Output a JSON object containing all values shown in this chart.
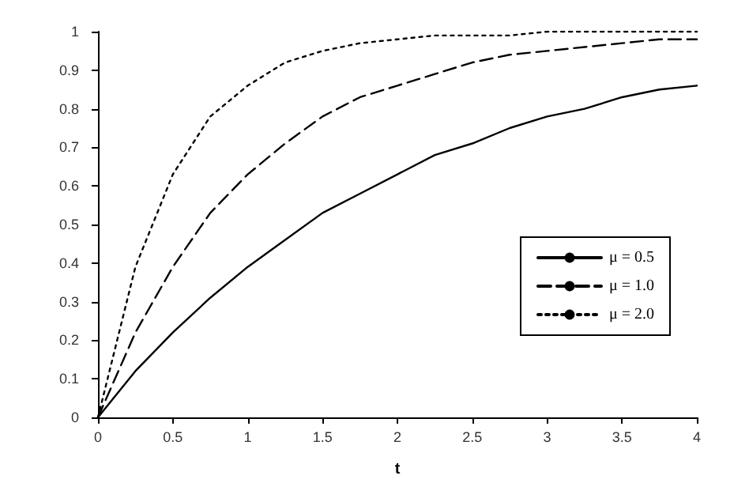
{
  "chart_data": {
    "type": "line",
    "xlabel": "t",
    "x": [
      0,
      0.25,
      0.5,
      0.75,
      1,
      1.25,
      1.5,
      1.75,
      2,
      2.25,
      2.5,
      2.75,
      3,
      3.25,
      3.5,
      3.75,
      4
    ],
    "series": [
      {
        "name": "μ = 0.5",
        "color": "#000000",
        "line_style": "solid",
        "values": [
          0,
          0.12,
          0.22,
          0.31,
          0.39,
          0.46,
          0.53,
          0.58,
          0.63,
          0.68,
          0.71,
          0.75,
          0.78,
          0.8,
          0.83,
          0.85,
          0.86
        ]
      },
      {
        "name": "μ = 1.0",
        "color": "#000000",
        "line_style": "dashed",
        "values": [
          0,
          0.22,
          0.39,
          0.53,
          0.63,
          0.71,
          0.78,
          0.83,
          0.86,
          0.89,
          0.92,
          0.94,
          0.95,
          0.96,
          0.97,
          0.98,
          0.98
        ]
      },
      {
        "name": "μ = 2.0",
        "color": "#000000",
        "line_style": "dotted",
        "values": [
          0,
          0.39,
          0.63,
          0.78,
          0.86,
          0.92,
          0.95,
          0.97,
          0.98,
          0.99,
          0.99,
          0.99,
          1,
          1,
          1,
          1,
          1
        ]
      }
    ],
    "xlim": [
      0,
      4
    ],
    "xticks": [
      0,
      0.5,
      1,
      1.5,
      2,
      2.5,
      3,
      3.5,
      4
    ],
    "ylim": [
      0,
      1
    ],
    "yticks": [
      0,
      0.1,
      0.2,
      0.3,
      0.4,
      0.5,
      0.6,
      0.7,
      0.8,
      0.9,
      1
    ],
    "grid": false,
    "legend": "right",
    "marker": "none"
  }
}
